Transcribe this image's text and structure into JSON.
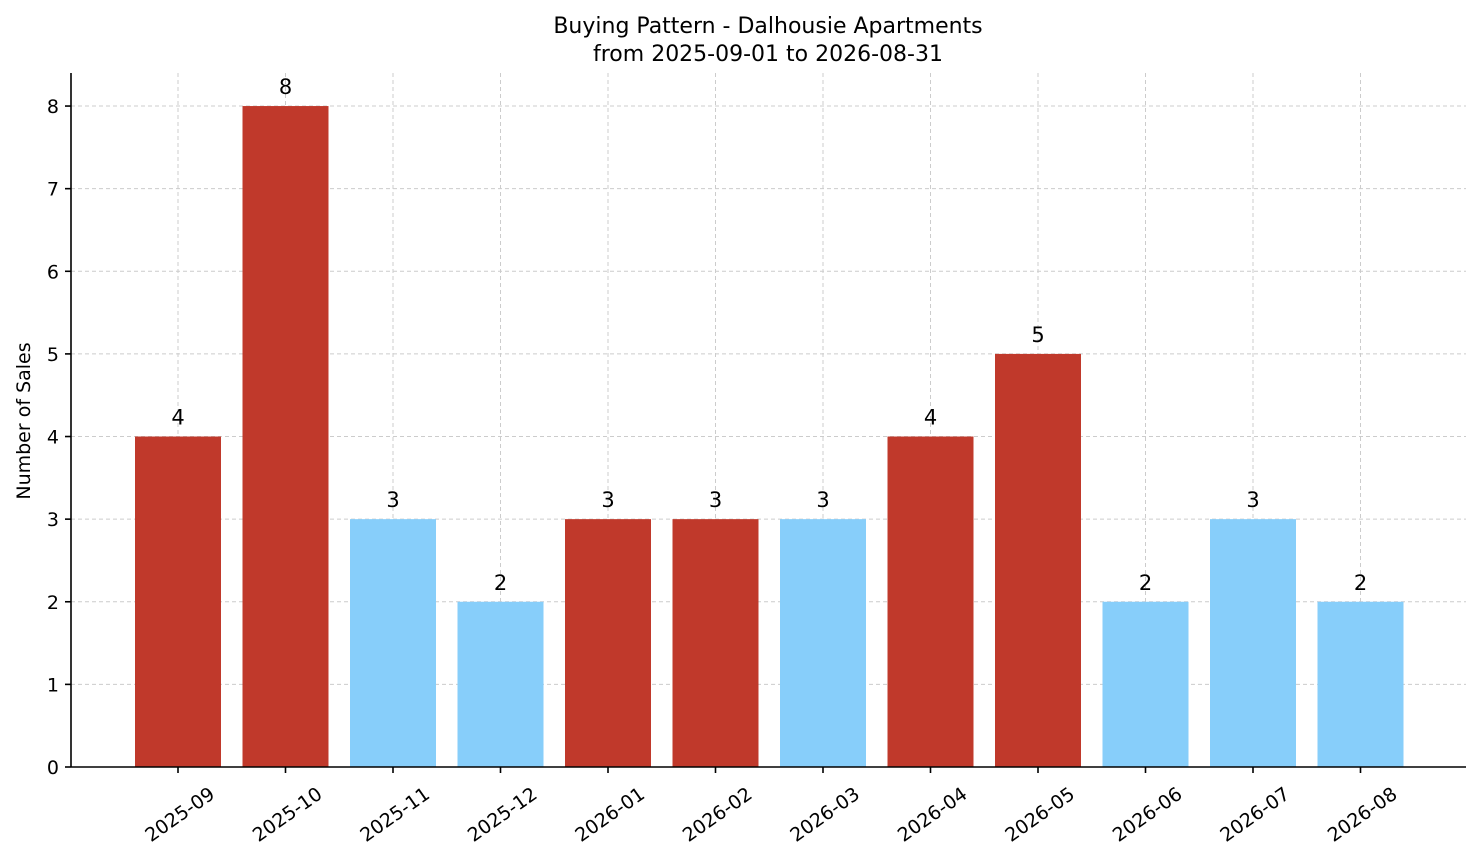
{
  "chart_data": {
    "type": "bar",
    "title": "Buying Pattern - Dalhousie Apartments",
    "subtitle": "from 2025-09-01 to 2026-08-31",
    "xlabel": "",
    "ylabel": "Number of Sales",
    "categories": [
      "2025-09",
      "2025-10",
      "2025-11",
      "2025-12",
      "2026-01",
      "2026-02",
      "2026-03",
      "2026-04",
      "2026-05",
      "2026-06",
      "2026-07",
      "2026-08"
    ],
    "values": [
      4,
      8,
      3,
      2,
      3,
      3,
      3,
      4,
      5,
      2,
      3,
      2
    ],
    "bar_colors": [
      "#c0392b",
      "#c0392b",
      "#87cefa",
      "#87cefa",
      "#c0392b",
      "#c0392b",
      "#87cefa",
      "#c0392b",
      "#c0392b",
      "#87cefa",
      "#87cefa",
      "#87cefa"
    ],
    "ylim": [
      0,
      8.4
    ],
    "yticks": [
      0,
      1,
      2,
      3,
      4,
      5,
      6,
      7,
      8
    ],
    "grid": true,
    "legend": "none",
    "x_tick_rotation": 35
  }
}
